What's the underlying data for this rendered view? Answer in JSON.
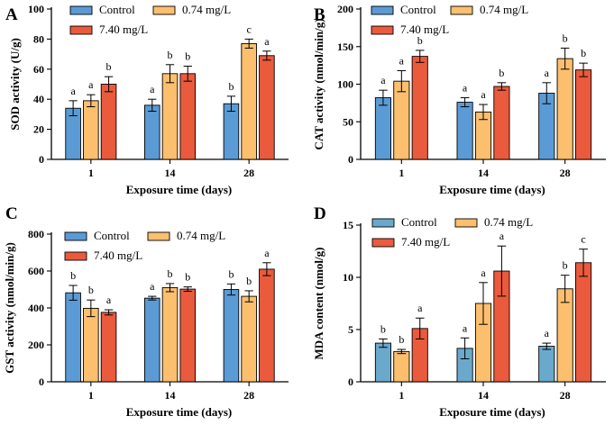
{
  "colors": {
    "control_blue": "#5b9bd5",
    "control_mda": "#6aa9cc",
    "orange_light": "#fbbf6e",
    "red": "#ea5a3c"
  },
  "chart_data": [
    {
      "panel": "A",
      "type": "bar",
      "ylabel": "SOD activity (U/g)",
      "xlabel": "Exposure time (days)",
      "categories": [
        "1",
        "14",
        "28"
      ],
      "ylim": [
        0,
        100
      ],
      "yticks": [
        0,
        20,
        40,
        60,
        80,
        100
      ],
      "legend": [
        "Control",
        "0.74 mg/L",
        "7.40 mg/L"
      ],
      "series": [
        {
          "name": "Control",
          "color": "#5b9bd5",
          "values": [
            34,
            36,
            37
          ],
          "errors": [
            5,
            4,
            5
          ],
          "labels": [
            "a",
            "a",
            "b"
          ]
        },
        {
          "name": "0.74 mg/L",
          "color": "#fbbf6e",
          "values": [
            39,
            57,
            77
          ],
          "errors": [
            4,
            6,
            3
          ],
          "labels": [
            "a",
            "b",
            "c"
          ]
        },
        {
          "name": "7.40 mg/L",
          "color": "#ea5a3c",
          "values": [
            50,
            57,
            69
          ],
          "errors": [
            5,
            5,
            3
          ],
          "labels": [
            "b",
            "b",
            "a"
          ]
        }
      ]
    },
    {
      "panel": "B",
      "type": "bar",
      "ylabel": "CAT activity (nmol/min/g)",
      "xlabel": "Exposure time (days)",
      "categories": [
        "1",
        "14",
        "28"
      ],
      "ylim": [
        0,
        200
      ],
      "yticks": [
        0,
        50,
        100,
        150,
        200
      ],
      "legend": [
        "Control",
        "0.74 mg/L",
        "7.40 mg/L"
      ],
      "series": [
        {
          "name": "Control",
          "color": "#5b9bd5",
          "values": [
            82,
            76,
            88
          ],
          "errors": [
            10,
            6,
            14
          ],
          "labels": [
            "a",
            "a",
            "a"
          ]
        },
        {
          "name": "0.74 mg/L",
          "color": "#fbbf6e",
          "values": [
            104,
            63,
            134
          ],
          "errors": [
            14,
            10,
            14
          ],
          "labels": [
            "a",
            "a",
            "b"
          ]
        },
        {
          "name": "7.40 mg/L",
          "color": "#ea5a3c",
          "values": [
            137,
            97,
            119
          ],
          "errors": [
            8,
            5,
            9
          ],
          "labels": [
            "b",
            "b",
            "b"
          ]
        }
      ]
    },
    {
      "panel": "C",
      "type": "bar",
      "ylabel": "GST activity (nmol/min/g)",
      "xlabel": "Exposure time (days)",
      "categories": [
        "1",
        "14",
        "28"
      ],
      "ylim": [
        0,
        800
      ],
      "yticks": [
        0,
        200,
        400,
        600,
        800
      ],
      "legend": [
        "Control",
        "0.74 mg/L",
        "7.40 mg/L"
      ],
      "series": [
        {
          "name": "Control",
          "color": "#5b9bd5",
          "values": [
            482,
            453,
            500
          ],
          "errors": [
            40,
            10,
            30
          ],
          "labels": [
            "b",
            "a",
            "b"
          ]
        },
        {
          "name": "0.74 mg/L",
          "color": "#fbbf6e",
          "values": [
            398,
            510,
            463
          ],
          "errors": [
            45,
            22,
            30
          ],
          "labels": [
            "b",
            "b",
            "b"
          ]
        },
        {
          "name": "7.40 mg/L",
          "color": "#ea5a3c",
          "values": [
            376,
            502,
            610
          ],
          "errors": [
            14,
            12,
            35
          ],
          "labels": [
            "a",
            "b",
            "a"
          ]
        }
      ]
    },
    {
      "panel": "D",
      "type": "bar",
      "ylabel": "MDA content (nmol/g)",
      "xlabel": "Exposure time (days)",
      "categories": [
        "1",
        "14",
        "28"
      ],
      "ylim": [
        0,
        15
      ],
      "yticks": [
        0,
        5,
        10,
        15
      ],
      "legend": [
        "Control",
        "0.74 mg/L",
        "7.40 mg/L"
      ],
      "series": [
        {
          "name": "Control",
          "color": "#6aa9cc",
          "values": [
            3.7,
            3.2,
            3.4
          ],
          "errors": [
            0.4,
            1.0,
            0.3
          ],
          "labels": [
            "b",
            "a",
            "a"
          ]
        },
        {
          "name": "0.74 mg/L",
          "color": "#fbbf6e",
          "values": [
            2.9,
            7.5,
            8.9
          ],
          "errors": [
            0.2,
            2.0,
            1.3
          ],
          "labels": [
            "b",
            "a",
            "b"
          ]
        },
        {
          "name": "7.40 mg/L",
          "color": "#ea5a3c",
          "values": [
            5.1,
            10.6,
            11.4
          ],
          "errors": [
            1.0,
            2.4,
            1.3
          ],
          "labels": [
            "a",
            "a",
            "c"
          ]
        }
      ]
    }
  ]
}
